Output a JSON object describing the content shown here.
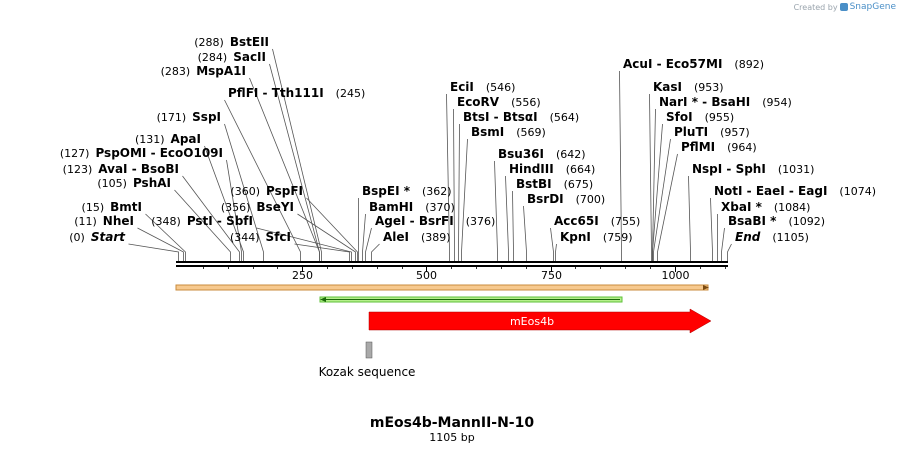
{
  "credit": {
    "prefix": "Created by",
    "brand": "SnapGene"
  },
  "map": {
    "name": "mEos4b-MannII-N-10",
    "length_label": "1105 bp",
    "length": 1105,
    "ticks": [
      250,
      500,
      750,
      1000
    ],
    "tick_labels": [
      "250",
      "500",
      "750",
      "1000"
    ]
  },
  "sites": [
    {
      "name": "Start",
      "pos": 0,
      "label": "(0)",
      "italic": true
    },
    {
      "name": "NheI",
      "pos": 11,
      "label": "(11)"
    },
    {
      "name": "BmtI",
      "pos": 15,
      "label": "(15)"
    },
    {
      "name": "PshAI",
      "pos": 105,
      "label": "(105)"
    },
    {
      "name": "AvaI  -  BsoBI",
      "pos": 123,
      "label": "(123)"
    },
    {
      "name": "PspOMI  -  EcoO109I",
      "pos": 127,
      "label": "(127)"
    },
    {
      "name": "ApaI",
      "pos": 131,
      "label": "(131)"
    },
    {
      "name": "SspI",
      "pos": 171,
      "label": "(171)"
    },
    {
      "name": "PflFI  -  Tth111I",
      "pos": 245,
      "label": "(245)"
    },
    {
      "name": "MspA1I",
      "pos": 283,
      "label": "(283)"
    },
    {
      "name": "SacII",
      "pos": 284,
      "label": "(284)"
    },
    {
      "name": "BstEII",
      "pos": 288,
      "label": "(288)"
    },
    {
      "name": "SfcI",
      "pos": 344,
      "label": "(344)"
    },
    {
      "name": "PstI  -  SbfI",
      "pos": 348,
      "label": "(348)"
    },
    {
      "name": "BseYI",
      "pos": 356,
      "label": "(356)"
    },
    {
      "name": "PspFI",
      "pos": 360,
      "label": "(360)"
    },
    {
      "name": "BspEI *",
      "pos": 362,
      "label": "(362)"
    },
    {
      "name": "BamHI",
      "pos": 370,
      "label": "(370)"
    },
    {
      "name": "AgeI  -  BsrFI",
      "pos": 376,
      "label": "(376)"
    },
    {
      "name": "AleI",
      "pos": 389,
      "label": "(389)"
    },
    {
      "name": "EciI",
      "pos": 546,
      "label": "(546)"
    },
    {
      "name": "EcoRV",
      "pos": 556,
      "label": "(556)"
    },
    {
      "name": "BtsI  -  BtsαI",
      "pos": 564,
      "label": "(564)"
    },
    {
      "name": "BsmI",
      "pos": 569,
      "label": "(569)"
    },
    {
      "name": "Bsu36I",
      "pos": 642,
      "label": "(642)"
    },
    {
      "name": "HindIII",
      "pos": 664,
      "label": "(664)"
    },
    {
      "name": "BstBI",
      "pos": 675,
      "label": "(675)"
    },
    {
      "name": "BsrDI",
      "pos": 700,
      "label": "(700)"
    },
    {
      "name": "Acc65I",
      "pos": 755,
      "label": "(755)"
    },
    {
      "name": "KpnI",
      "pos": 759,
      "label": "(759)"
    },
    {
      "name": "AcuI  -  Eco57MI",
      "pos": 892,
      "label": "(892)"
    },
    {
      "name": "KasI",
      "pos": 953,
      "label": "(953)"
    },
    {
      "name": "NarI *  -  BsaHI",
      "pos": 954,
      "label": "(954)"
    },
    {
      "name": "SfoI",
      "pos": 955,
      "label": "(955)"
    },
    {
      "name": "PluTI",
      "pos": 957,
      "label": "(957)"
    },
    {
      "name": "PflMI",
      "pos": 964,
      "label": "(964)"
    },
    {
      "name": "NspI  -  SphI",
      "pos": 1031,
      "label": "(1031)"
    },
    {
      "name": "NotI  -  EaeI  -  EagI",
      "pos": 1074,
      "label": "(1074)"
    },
    {
      "name": "XbaI *",
      "pos": 1084,
      "label": "(1084)"
    },
    {
      "name": "BsaBI *",
      "pos": 1092,
      "label": "(1092)"
    },
    {
      "name": "End",
      "pos": 1105,
      "label": "(1105)",
      "italic": true
    }
  ],
  "features": [
    {
      "id": "orange-feature",
      "start": 0,
      "end": 1105,
      "color": "#f4c28a",
      "stroke": "#c98a3a",
      "label": ""
    },
    {
      "id": "green-feature",
      "start": 298,
      "end": 900,
      "color": "#9be27a",
      "stroke": "#4fb530",
      "label": ""
    },
    {
      "id": "meos4b",
      "start": 390,
      "end": 1105,
      "color": "#ff0000",
      "label": "mEos4b"
    },
    {
      "id": "kozak",
      "start": 384,
      "end": 390,
      "color": "#a9a9a9",
      "label": "Kozak sequence"
    }
  ]
}
